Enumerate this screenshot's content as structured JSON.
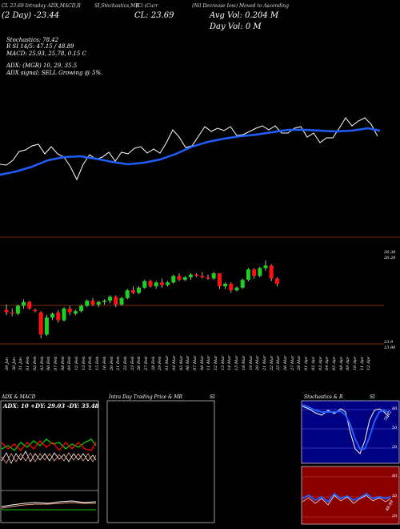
{
  "header": {
    "line1": "CL 23.69 Intraday ADX,MACD,R",
    "line1b": "SI,Stochastics,MR",
    "line1c": "(Ci (Curr",
    "line1d": "(Nil Decrease Iow) Moved to Ascending",
    "close_label": "CL: 23.69",
    "vol_label": "Avg Vol: 0.204  M",
    "dayvol_label": "Day Vol: 0   M",
    "change_label": "(2  Day) -23.44",
    "stoch": "Stochastics: 78.42",
    "rsi": "R                SI 14/5: 47.15 / 48.89",
    "macd": "MACD: 25.93, 25.78, 0.15 C",
    "adx": "ADX:              (MGR) 10, 29, 35.5",
    "adx_signal": "ADX  signal: SELL Growing @ 5%."
  },
  "price_panel": {
    "right_labels": [
      "26.36",
      "26.29",
      "23.9",
      "23.90"
    ]
  },
  "date_labels": [
    "29 Jan",
    "30 Jan",
    "31 Jan",
    "01 Feb",
    "02 Feb",
    "05 Feb",
    "06 Feb",
    "07 Feb",
    "08 Feb",
    "09 Feb",
    "12 Feb",
    "13 Feb",
    "14 Feb",
    "15 Feb",
    "16 Feb",
    "20 Feb",
    "21 Feb",
    "22 Feb",
    "23 Feb",
    "26 Feb",
    "27 Feb",
    "28 Feb",
    "29 Feb",
    "01 Mar",
    "04 Mar",
    "05 Mar",
    "06 Mar",
    "07 Mar",
    "08 Mar",
    "11 Mar",
    "12 Mar",
    "13 Mar",
    "14 Mar",
    "15 Mar",
    "18 Mar",
    "19 Mar",
    "20 Mar",
    "21 Mar",
    "22 Mar",
    "25 Mar",
    "26 Mar",
    "27 Mar",
    "28 Mar",
    "01 Apr",
    "02 Apr",
    "03 Apr",
    "04 Apr",
    "05 Apr",
    "08 Apr",
    "09 Apr",
    "10 Apr",
    "11 Apr",
    "12 Apr"
  ],
  "panels": {
    "adx_title": "ADX  & MACD",
    "adx_values": "ADX: 10  +DY: 29.03  -DY: 35.48",
    "mrsi_title": "Intra  Day Trading Price  & MR",
    "mrsi_title2": "SI",
    "stoch_title": "Stochastics & R",
    "stoch_title2": "SI",
    "stoch_axis": [
      "80",
      "50",
      "20"
    ],
    "stoch_val": "78.42",
    "rsi_axis": [
      "80",
      "50",
      "20"
    ],
    "rsi_val": "48.89"
  },
  "chart_data": {
    "type": "candlestick",
    "candles": [
      {
        "o": 24.2,
        "h": 24.4,
        "l": 24.0,
        "c": 24.1,
        "up": false
      },
      {
        "o": 24.1,
        "h": 24.25,
        "l": 23.95,
        "c": 24.05,
        "up": false
      },
      {
        "o": 24.05,
        "h": 24.4,
        "l": 24.0,
        "c": 24.35,
        "up": true
      },
      {
        "o": 24.35,
        "h": 24.6,
        "l": 24.25,
        "c": 24.5,
        "up": true
      },
      {
        "o": 24.5,
        "h": 24.55,
        "l": 24.2,
        "c": 24.25,
        "up": false
      },
      {
        "o": 24.2,
        "h": 24.25,
        "l": 24.1,
        "c": 24.15,
        "up": false
      },
      {
        "o": 24.1,
        "h": 24.15,
        "l": 23.1,
        "c": 23.25,
        "up": false
      },
      {
        "o": 23.25,
        "h": 24.0,
        "l": 23.2,
        "c": 23.9,
        "up": true
      },
      {
        "o": 23.9,
        "h": 24.1,
        "l": 23.8,
        "c": 24.05,
        "up": true
      },
      {
        "o": 24.1,
        "h": 24.2,
        "l": 23.7,
        "c": 23.8,
        "up": false
      },
      {
        "o": 23.8,
        "h": 24.3,
        "l": 23.75,
        "c": 24.25,
        "up": true
      },
      {
        "o": 24.25,
        "h": 24.35,
        "l": 24.0,
        "c": 24.1,
        "up": false
      },
      {
        "o": 24.05,
        "h": 24.2,
        "l": 24.0,
        "c": 24.15,
        "up": true
      },
      {
        "o": 24.15,
        "h": 24.4,
        "l": 24.1,
        "c": 24.35,
        "up": true
      },
      {
        "o": 24.35,
        "h": 24.6,
        "l": 24.3,
        "c": 24.55,
        "up": true
      },
      {
        "o": 24.55,
        "h": 24.65,
        "l": 24.35,
        "c": 24.4,
        "up": false
      },
      {
        "o": 24.4,
        "h": 24.55,
        "l": 24.3,
        "c": 24.5,
        "up": true
      },
      {
        "o": 24.5,
        "h": 24.6,
        "l": 24.4,
        "c": 24.55,
        "up": true
      },
      {
        "o": 24.55,
        "h": 24.75,
        "l": 24.45,
        "c": 24.7,
        "up": true
      },
      {
        "o": 24.7,
        "h": 24.75,
        "l": 24.3,
        "c": 24.4,
        "up": false
      },
      {
        "o": 24.4,
        "h": 24.7,
        "l": 24.35,
        "c": 24.65,
        "up": true
      },
      {
        "o": 24.65,
        "h": 25.0,
        "l": 24.6,
        "c": 24.95,
        "up": true
      },
      {
        "o": 24.95,
        "h": 25.1,
        "l": 24.8,
        "c": 24.85,
        "up": false
      },
      {
        "o": 24.85,
        "h": 25.1,
        "l": 24.8,
        "c": 25.05,
        "up": true
      },
      {
        "o": 25.05,
        "h": 25.35,
        "l": 25.0,
        "c": 25.3,
        "up": true
      },
      {
        "o": 25.3,
        "h": 25.35,
        "l": 25.05,
        "c": 25.1,
        "up": false
      },
      {
        "o": 25.1,
        "h": 25.3,
        "l": 25.0,
        "c": 25.25,
        "up": true
      },
      {
        "o": 25.25,
        "h": 25.4,
        "l": 25.05,
        "c": 25.15,
        "up": false
      },
      {
        "o": 25.15,
        "h": 25.3,
        "l": 25.1,
        "c": 25.25,
        "up": true
      },
      {
        "o": 25.25,
        "h": 25.55,
        "l": 25.2,
        "c": 25.5,
        "up": true
      },
      {
        "o": 25.5,
        "h": 25.6,
        "l": 25.3,
        "c": 25.35,
        "up": false
      },
      {
        "o": 25.35,
        "h": 25.5,
        "l": 25.3,
        "c": 25.45,
        "up": true
      },
      {
        "o": 25.45,
        "h": 25.6,
        "l": 25.35,
        "c": 25.55,
        "up": true
      },
      {
        "o": 25.55,
        "h": 25.6,
        "l": 25.45,
        "c": 25.5,
        "up": false
      },
      {
        "o": 25.5,
        "h": 25.65,
        "l": 25.4,
        "c": 25.45,
        "up": false
      },
      {
        "o": 25.45,
        "h": 25.55,
        "l": 25.35,
        "c": 25.4,
        "up": false
      },
      {
        "o": 25.4,
        "h": 25.65,
        "l": 25.35,
        "c": 25.6,
        "up": true
      },
      {
        "o": 25.6,
        "h": 25.6,
        "l": 25.0,
        "c": 25.1,
        "up": false
      },
      {
        "o": 25.1,
        "h": 25.25,
        "l": 25.0,
        "c": 25.2,
        "up": true
      },
      {
        "o": 25.2,
        "h": 25.25,
        "l": 24.85,
        "c": 24.95,
        "up": false
      },
      {
        "o": 24.95,
        "h": 25.1,
        "l": 24.9,
        "c": 25.05,
        "up": true
      },
      {
        "o": 25.05,
        "h": 25.4,
        "l": 25.0,
        "c": 25.35,
        "up": true
      },
      {
        "o": 25.35,
        "h": 25.8,
        "l": 25.3,
        "c": 25.75,
        "up": true
      },
      {
        "o": 25.75,
        "h": 25.8,
        "l": 25.4,
        "c": 25.5,
        "up": false
      },
      {
        "o": 25.5,
        "h": 25.85,
        "l": 25.45,
        "c": 25.8,
        "up": true
      },
      {
        "o": 25.8,
        "h": 26.1,
        "l": 25.7,
        "c": 25.9,
        "up": true
      },
      {
        "o": 25.9,
        "h": 25.95,
        "l": 25.3,
        "c": 25.4,
        "up": false
      },
      {
        "o": 25.4,
        "h": 25.45,
        "l": 25.1,
        "c": 25.2,
        "up": false
      }
    ],
    "ylim": [
      22.8,
      26.4
    ]
  }
}
